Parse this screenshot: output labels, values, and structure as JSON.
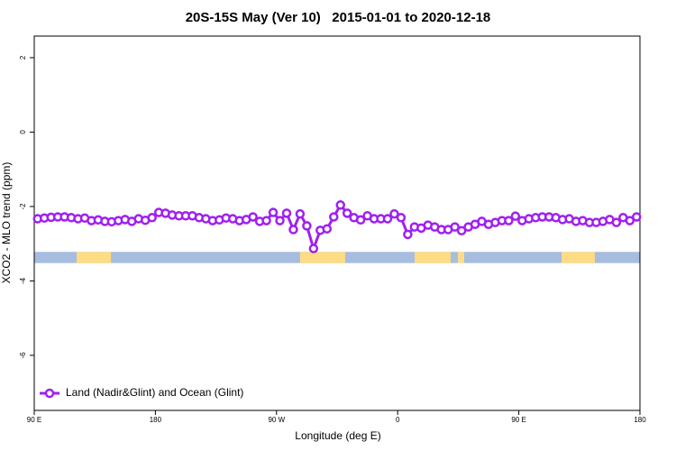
{
  "chart_data": {
    "type": "line",
    "title": "20S-15S May (Ver 10)   2015-01-01 to 2020-12-18",
    "x_label": "Longitude (deg E)",
    "y_label": "XCO2 - MLO trend (ppm)",
    "xlim": [
      90,
      540
    ],
    "xticks": [
      {
        "value": 90,
        "label": "90 E"
      },
      {
        "value": 180,
        "label": "180"
      },
      {
        "value": 270,
        "label": "90 W"
      },
      {
        "value": 360,
        "label": "0"
      },
      {
        "value": 450,
        "label": "90 E"
      },
      {
        "value": 540,
        "label": "180"
      }
    ],
    "ylim": [
      -7.48,
      2.58
    ],
    "yticks": [
      -6,
      -4,
      -2,
      0,
      2
    ],
    "legend": "bottom-left",
    "ocean_band": {
      "y": [
        -3.52,
        -3.22
      ],
      "color": "#a7bddf"
    },
    "land_segments": {
      "color": "#fddc84",
      "x": [
        [
          121.5,
          147
        ],
        [
          287.5,
          321
        ],
        [
          372.6,
          399.4
        ],
        [
          404.7,
          409.4
        ],
        [
          481.8,
          506.5
        ]
      ]
    },
    "x": [
      92.5,
      97.5,
      102.5,
      107.5,
      112.5,
      117.5,
      122.5,
      127.5,
      132.5,
      137.5,
      142.5,
      147.5,
      152.5,
      157.5,
      162.5,
      167.5,
      172.5,
      177.5,
      182.5,
      187.5,
      192.5,
      197.5,
      202.5,
      207.5,
      212.5,
      217.5,
      222.5,
      227.5,
      232.5,
      237.5,
      242.5,
      247.5,
      252.5,
      257.5,
      262.5,
      267.5,
      272.5,
      277.5,
      282.5,
      287.5,
      292.5,
      297.5,
      302.5,
      307.5,
      312.5,
      317.5,
      322.5,
      327.5,
      332.5,
      337.5,
      342.5,
      347.5,
      352.5,
      357.5,
      362.5,
      367.5,
      372.5,
      377.5,
      382.5,
      387.5,
      392.5,
      397.5,
      402.5,
      407.5,
      412.5,
      417.5,
      422.5,
      427.5,
      432.5,
      437.5,
      442.5,
      447.5,
      452.5,
      457.5,
      462.5,
      467.5,
      472.5,
      477.5,
      482.5,
      487.5,
      492.5,
      497.5,
      502.5,
      507.5,
      512.5,
      517.5,
      522.5,
      527.5,
      532.5,
      537.5
    ],
    "series": [
      {
        "name": "Land (Nadir&Glint) and Ocean (Glint)",
        "color": "#a020f0",
        "values": [
          -2.33,
          -2.31,
          -2.29,
          -2.28,
          -2.28,
          -2.3,
          -2.33,
          -2.31,
          -2.38,
          -2.36,
          -2.4,
          -2.41,
          -2.38,
          -2.35,
          -2.4,
          -2.33,
          -2.37,
          -2.3,
          -2.16,
          -2.18,
          -2.23,
          -2.25,
          -2.25,
          -2.25,
          -2.3,
          -2.33,
          -2.38,
          -2.36,
          -2.31,
          -2.33,
          -2.38,
          -2.35,
          -2.28,
          -2.4,
          -2.38,
          -2.16,
          -2.38,
          -2.18,
          -2.62,
          -2.2,
          -2.52,
          -3.13,
          -2.64,
          -2.6,
          -2.28,
          -1.96,
          -2.18,
          -2.3,
          -2.36,
          -2.25,
          -2.33,
          -2.33,
          -2.33,
          -2.2,
          -2.3,
          -2.75,
          -2.55,
          -2.58,
          -2.5,
          -2.55,
          -2.62,
          -2.62,
          -2.55,
          -2.65,
          -2.55,
          -2.48,
          -2.4,
          -2.48,
          -2.43,
          -2.38,
          -2.38,
          -2.26,
          -2.38,
          -2.33,
          -2.3,
          -2.28,
          -2.28,
          -2.3,
          -2.35,
          -2.33,
          -2.4,
          -2.38,
          -2.43,
          -2.43,
          -2.4,
          -2.35,
          -2.43,
          -2.3,
          -2.38,
          -2.28
        ]
      }
    ]
  }
}
